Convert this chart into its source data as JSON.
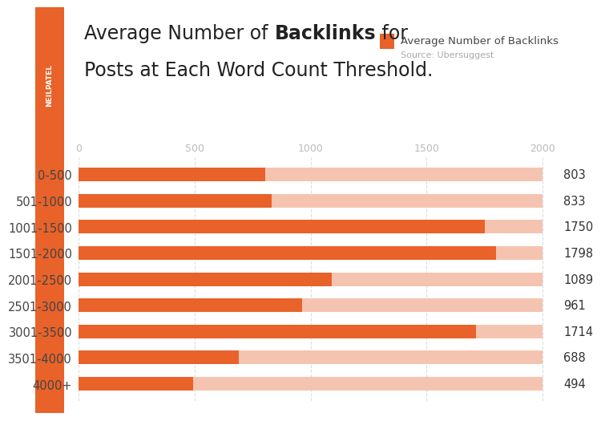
{
  "categories": [
    "0-500",
    "501-1000",
    "1001-1500",
    "1501-2000",
    "2001-2500",
    "2501-3000",
    "3001-3500",
    "3501-4000",
    "4000+"
  ],
  "values": [
    803,
    833,
    1750,
    1798,
    1089,
    961,
    1714,
    688,
    494
  ],
  "bar_color": "#E8622A",
  "bar_bg_color": "#F5C4B0",
  "legend_label": "Average Number of Backlinks",
  "source_text": "Source: Ubersuggest",
  "sidebar_color": "#E8622A",
  "sidebar_text": "NEILPATEL",
  "bg_color": "#FFFFFF",
  "tick_color": "#BBBBBB",
  "label_color": "#444444",
  "value_color": "#333333",
  "grid_color": "#DDDDDD",
  "xlim_max": 2000,
  "xticks": [
    0,
    500,
    1000,
    1500,
    2000
  ],
  "bar_height": 0.52,
  "title_fontsize": 17,
  "label_fontsize": 10.5,
  "value_fontsize": 10.5,
  "legend_fontsize": 9.5,
  "source_fontsize": 8
}
